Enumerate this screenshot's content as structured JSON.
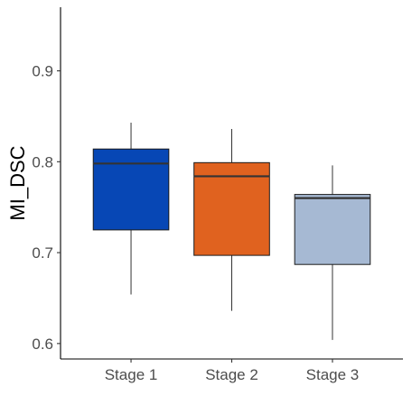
{
  "chart_data": {
    "type": "box",
    "title": "",
    "xlabel": "",
    "ylabel": "MI_DSC",
    "ylim": [
      0.583,
      0.97
    ],
    "yticks": [
      0.6,
      0.7,
      0.8,
      0.9
    ],
    "ytick_labels": [
      "0.6",
      "0.7",
      "0.8",
      "0.9"
    ],
    "categories": [
      "Stage 1",
      "Stage 2",
      "Stage 3"
    ],
    "boxes": [
      {
        "category": "Stage 1",
        "whisker_low": 0.654,
        "q1": 0.725,
        "median": 0.798,
        "q3": 0.814,
        "whisker_high": 0.843,
        "color": "#0747b5"
      },
      {
        "category": "Stage 2",
        "whisker_low": 0.636,
        "q1": 0.697,
        "median": 0.784,
        "q3": 0.799,
        "whisker_high": 0.836,
        "color": "#e0621f"
      },
      {
        "category": "Stage 3",
        "whisker_low": 0.604,
        "q1": 0.687,
        "median": 0.76,
        "q3": 0.764,
        "whisker_high": 0.796,
        "color": "#a6b9d3"
      }
    ],
    "grid": false,
    "legend": "none"
  }
}
